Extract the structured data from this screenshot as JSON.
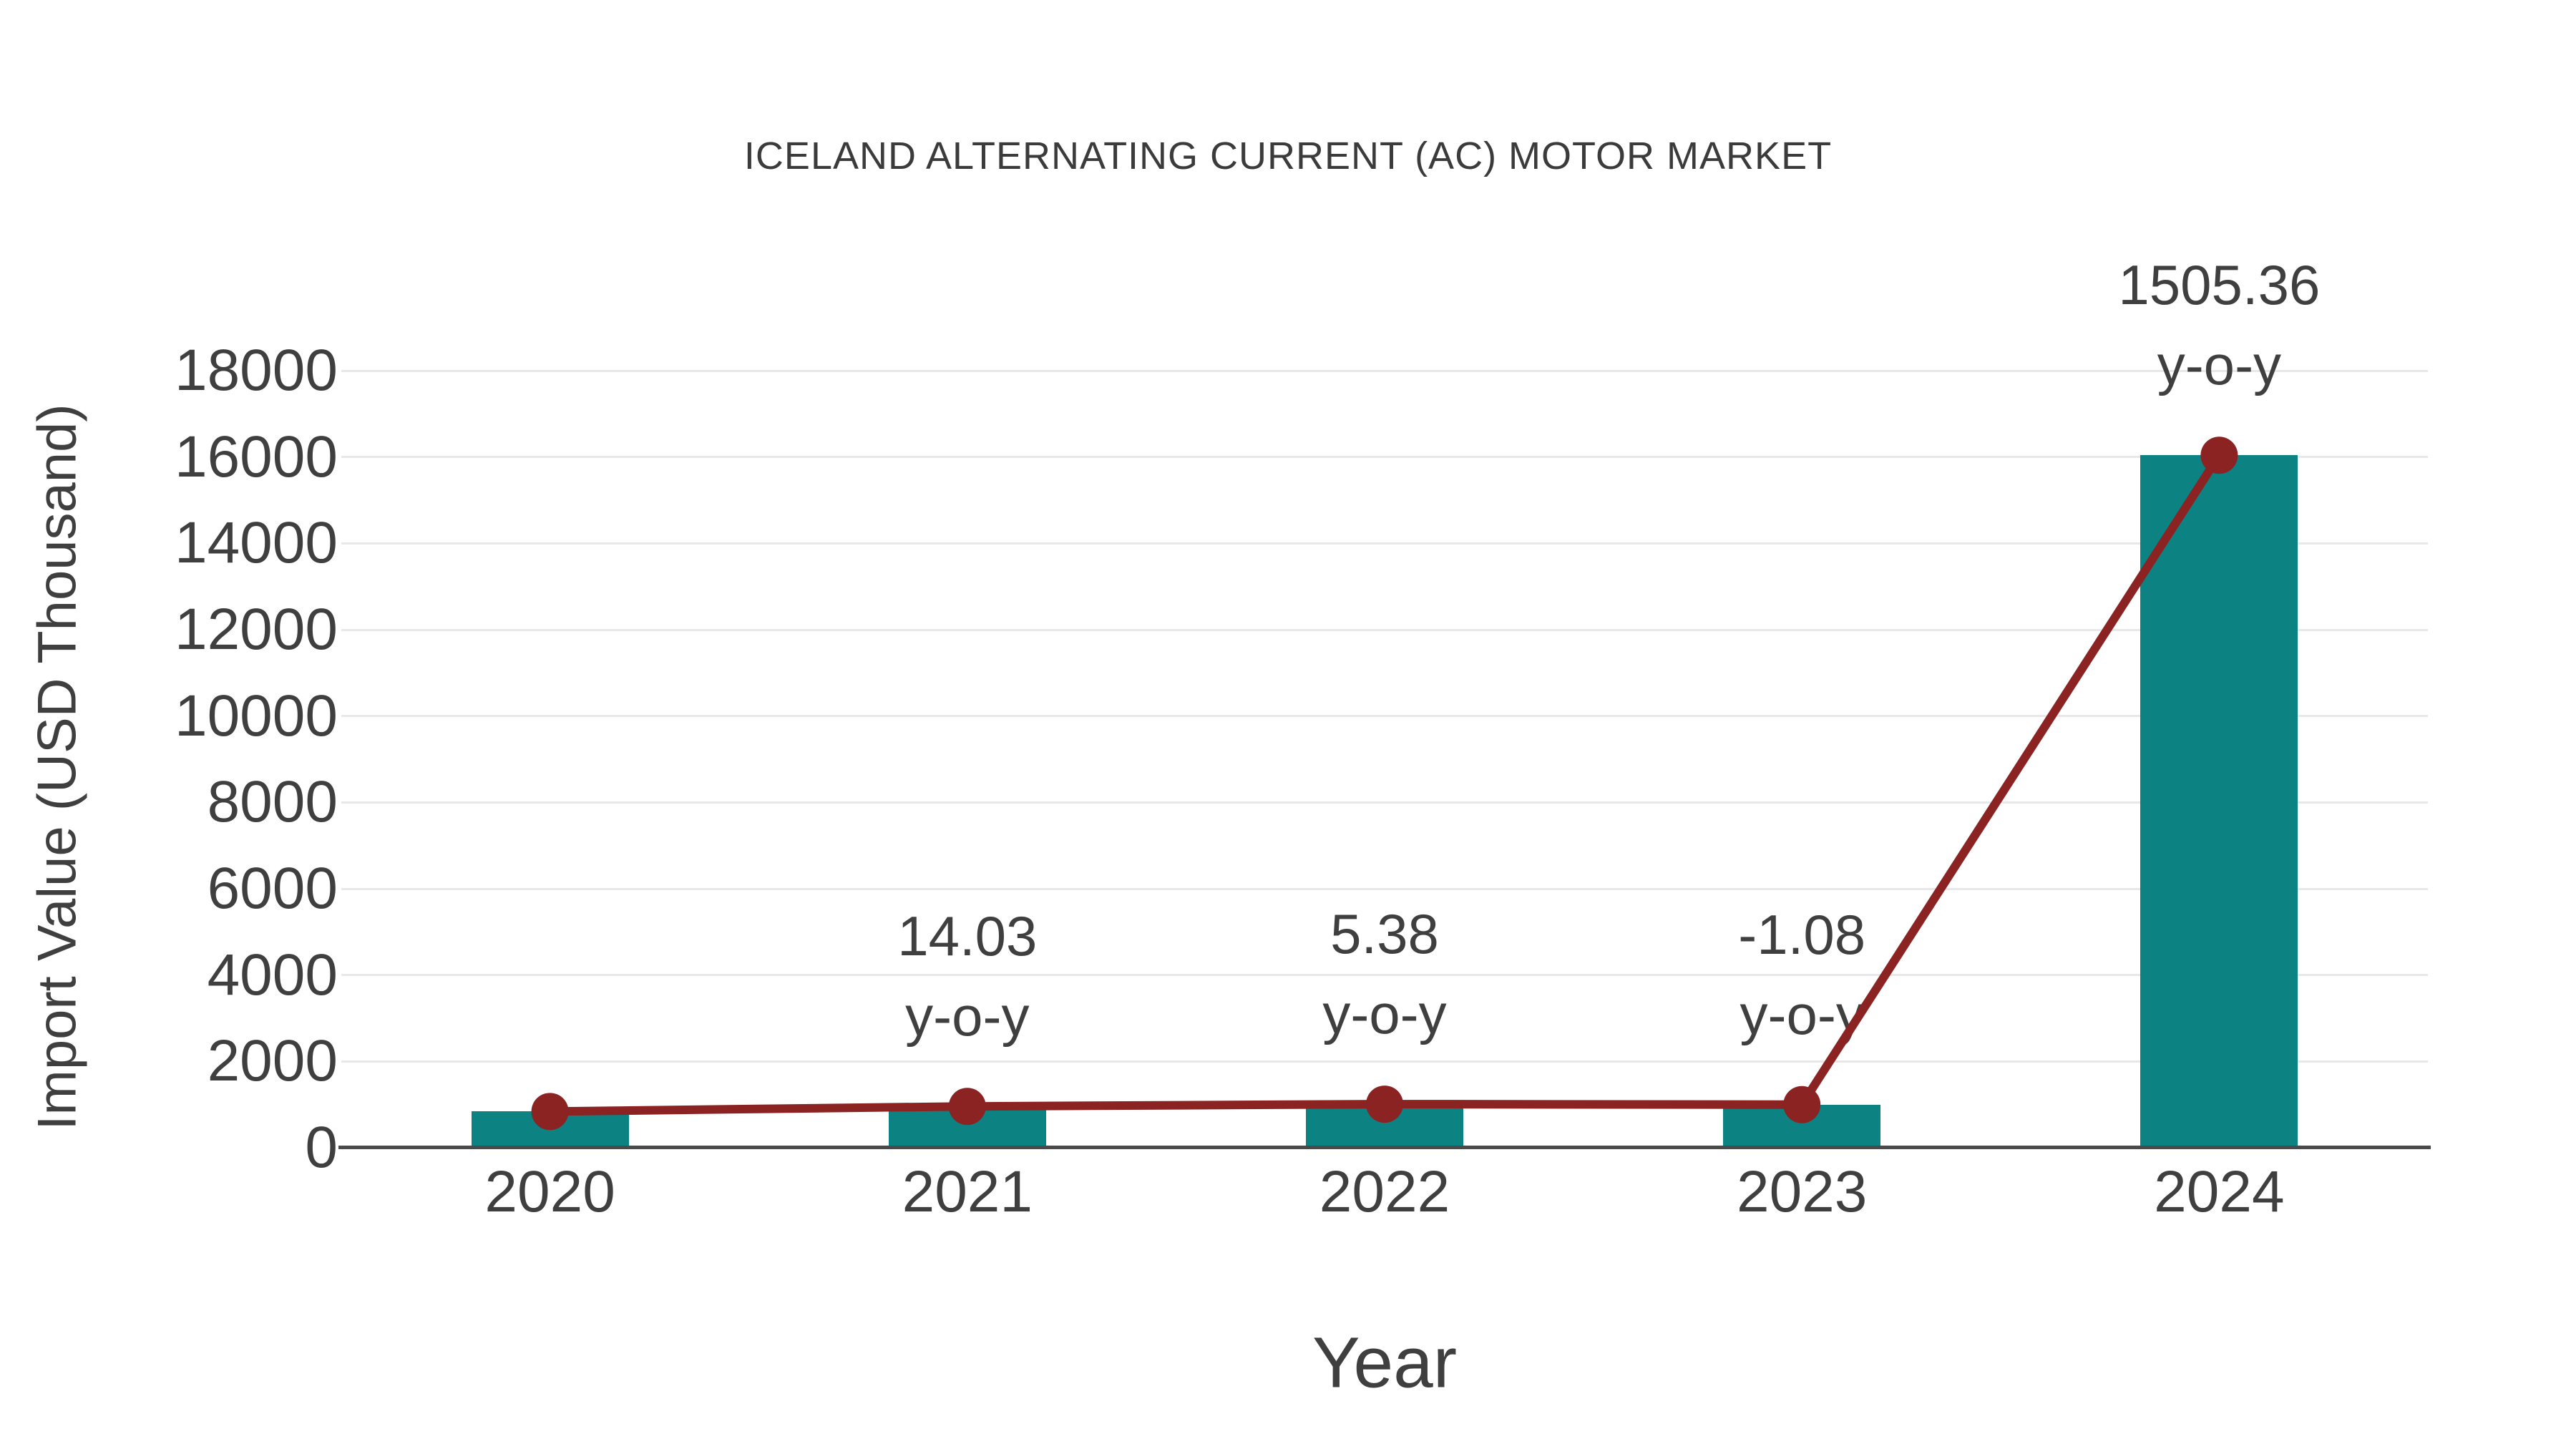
{
  "title": "ICELAND ALTERNATING CURRENT (AC) MOTOR MARKET",
  "colors": {
    "bar": "#0c8282",
    "line": "#8b2323",
    "marker": "#8b2323",
    "grid": "#e8e8e8",
    "axis": "#4a4a4a",
    "text": "#3f3f3f"
  },
  "chart_data": {
    "type": "bar",
    "title": "ICELAND ALTERNATING CURRENT (AC) MOTOR MARKET",
    "xlabel": "Year",
    "ylabel": "Import Value (USD Thousand)",
    "categories": [
      "2020",
      "2021",
      "2022",
      "2023",
      "2024"
    ],
    "series": [
      {
        "name": "Import Value (USD Thousand)",
        "type": "bar",
        "color": "#0c8282",
        "values": [
          840,
          958,
          1010,
          999,
          16040
        ]
      },
      {
        "name": "y-o-y trend line",
        "type": "line",
        "color": "#8b2323",
        "values": [
          840,
          958,
          1010,
          999,
          16040
        ]
      }
    ],
    "annotations": [
      {
        "category": "2021",
        "value_label": "14.03",
        "suffix": "y-o-y"
      },
      {
        "category": "2022",
        "value_label": "5.38",
        "suffix": "y-o-y"
      },
      {
        "category": "2023",
        "value_label": "-1.08",
        "suffix": "y-o-y"
      },
      {
        "category": "2024",
        "value_label": "1505.36",
        "suffix": "y-o-y"
      }
    ],
    "ylim": [
      0,
      18000
    ],
    "ytick_labels": [
      "0",
      "2000",
      "4000",
      "6000",
      "8000",
      "10000",
      "12000",
      "14000",
      "16000",
      "18000"
    ],
    "grid": true,
    "legend": false
  }
}
